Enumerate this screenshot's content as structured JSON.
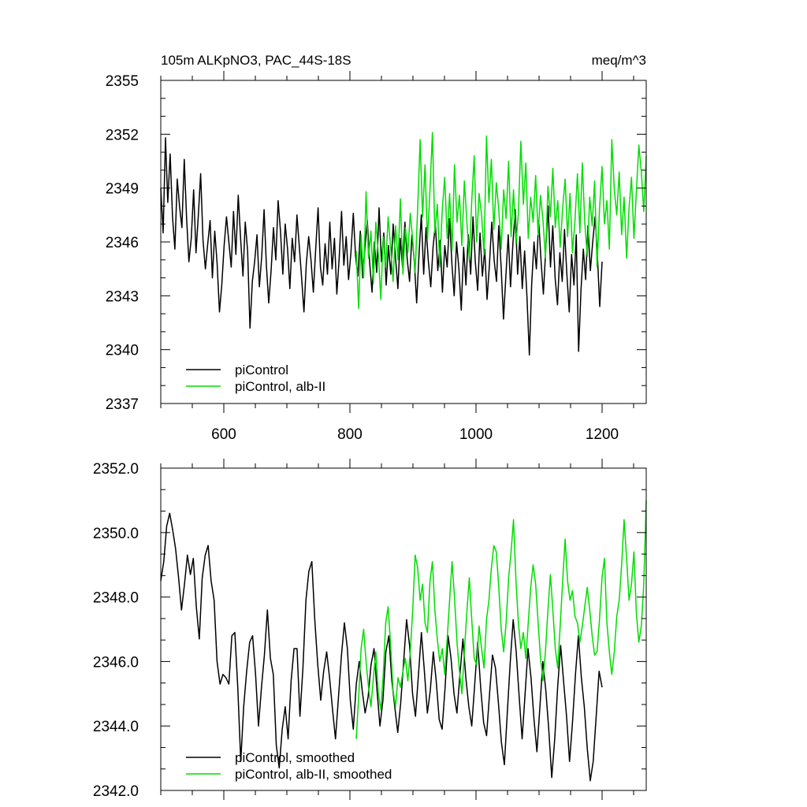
{
  "chart_data": [
    {
      "type": "line",
      "title_left": "105m ALKpNO3, PAC_44S-18S",
      "title_right": "meq/m^3",
      "xlabel": "",
      "ylabel": "",
      "xlim": [
        500,
        1270
      ],
      "ylim": [
        2337,
        2355
      ],
      "xticks": [
        600,
        800,
        1000,
        1200
      ],
      "xtick_labels": [
        "600",
        "800",
        "1000",
        "1200"
      ],
      "yticks": [
        2337,
        2340,
        2343,
        2346,
        2349,
        2352,
        2355
      ],
      "ytick_labels": [
        "2337",
        "2340",
        "2343",
        "2346",
        "2349",
        "2352",
        "2355"
      ],
      "grid": false,
      "legend_position": "bottom-left",
      "series": [
        {
          "name": "piControl",
          "color": "#000000",
          "x_start": 500,
          "x_end": 1200,
          "values": [
            2349.0,
            2346.5,
            2351.8,
            2348.2,
            2350.9,
            2347.4,
            2345.6,
            2349.5,
            2348.0,
            2346.8,
            2350.6,
            2347.3,
            2344.9,
            2346.2,
            2348.9,
            2345.4,
            2347.5,
            2349.8,
            2346.1,
            2344.5,
            2345.9,
            2347.2,
            2344.0,
            2346.6,
            2344.8,
            2342.1,
            2343.6,
            2345.8,
            2347.4,
            2346.0,
            2344.6,
            2347.7,
            2345.3,
            2348.6,
            2346.2,
            2344.1,
            2347.1,
            2345.5,
            2341.2,
            2343.8,
            2344.9,
            2346.4,
            2343.5,
            2345.2,
            2347.8,
            2344.7,
            2342.6,
            2344.4,
            2346.8,
            2345.0,
            2348.3,
            2346.6,
            2344.2,
            2347.0,
            2345.6,
            2343.4,
            2346.2,
            2344.9,
            2347.5,
            2345.8,
            2344.0,
            2342.1,
            2344.8,
            2346.3,
            2345.0,
            2343.2,
            2345.6,
            2347.9,
            2344.6,
            2343.6,
            2345.9,
            2344.2,
            2347.1,
            2344.5,
            2346.2,
            2343.1,
            2345.1,
            2347.7,
            2344.7,
            2346.3,
            2343.9,
            2345.4,
            2347.6,
            2345.2,
            2344.1,
            2346.6,
            2344.0,
            2345.7,
            2347.2,
            2344.8,
            2343.2,
            2346.0,
            2344.3,
            2347.9,
            2344.9,
            2346.5,
            2343.6,
            2345.8,
            2344.2,
            2347.0,
            2345.1,
            2343.4,
            2346.2,
            2344.6,
            2347.1,
            2345.0,
            2343.8,
            2346.4,
            2344.9,
            2342.6,
            2345.3,
            2347.5,
            2344.2,
            2346.8,
            2344.9,
            2343.5,
            2345.7,
            2347.0,
            2344.4,
            2346.1,
            2343.2,
            2345.8,
            2344.6,
            2347.3,
            2344.8,
            2343.0,
            2346.0,
            2344.5,
            2342.2,
            2345.7,
            2343.6,
            2346.4,
            2344.2,
            2347.4,
            2344.9,
            2343.3,
            2346.5,
            2344.1,
            2345.6,
            2342.8,
            2344.7,
            2347.1,
            2345.0,
            2343.8,
            2346.9,
            2344.6,
            2341.7,
            2344.1,
            2346.4,
            2343.5,
            2345.9,
            2347.8,
            2344.2,
            2346.3,
            2343.4,
            2345.5,
            2342.9,
            2339.7,
            2343.6,
            2346.0,
            2344.5,
            2347.2,
            2344.9,
            2343.1,
            2345.6,
            2348.0,
            2344.6,
            2346.9,
            2344.0,
            2342.5,
            2345.4,
            2343.8,
            2346.7,
            2344.2,
            2342.1,
            2345.3,
            2343.6,
            2346.4,
            2339.9,
            2343.3,
            2345.6,
            2343.9,
            2346.9,
            2344.4,
            2346.0,
            2347.4,
            2345.3,
            2342.4,
            2344.9
          ]
        },
        {
          "name": "piControl, alb-II",
          "color": "#00dd00",
          "x_start": 810,
          "x_end": 1270,
          "values": [
            2345.5,
            2342.3,
            2346.4,
            2344.0,
            2348.8,
            2345.1,
            2346.6,
            2343.7,
            2347.1,
            2345.3,
            2342.8,
            2346.3,
            2344.6,
            2347.4,
            2345.7,
            2343.8,
            2346.9,
            2345.0,
            2348.4,
            2344.2,
            2346.8,
            2345.4,
            2347.6,
            2346.1,
            2344.3,
            2347.9,
            2351.7,
            2347.4,
            2350.3,
            2346.1,
            2348.9,
            2352.1,
            2346.5,
            2348.1,
            2344.6,
            2347.8,
            2349.6,
            2346.2,
            2348.7,
            2345.5,
            2350.3,
            2347.1,
            2348.6,
            2345.8,
            2349.4,
            2347.2,
            2345.0,
            2348.3,
            2350.8,
            2346.0,
            2348.7,
            2347.5,
            2345.3,
            2351.9,
            2348.2,
            2350.6,
            2346.7,
            2349.3,
            2347.8,
            2345.6,
            2348.9,
            2347.3,
            2350.5,
            2346.3,
            2348.9,
            2345.9,
            2347.6,
            2351.6,
            2348.1,
            2350.4,
            2346.2,
            2348.5,
            2347.1,
            2349.7,
            2346.4,
            2348.6,
            2347.2,
            2345.1,
            2349.1,
            2347.4,
            2350.1,
            2346.8,
            2348.3,
            2345.7,
            2347.9,
            2349.5,
            2346.3,
            2348.7,
            2345.4,
            2347.2,
            2349.8,
            2346.5,
            2350.4,
            2347.1,
            2345.2,
            2348.5,
            2346.9,
            2349.4,
            2344.6,
            2347.8,
            2350.2,
            2347.0,
            2348.3,
            2345.6,
            2351.7,
            2348.9,
            2347.5,
            2349.9,
            2346.4,
            2348.5,
            2345.1,
            2347.9,
            2349.6,
            2346.2,
            2348.8,
            2351.4,
            2349.9,
            2347.7,
            2350.8
          ]
        }
      ]
    },
    {
      "type": "line",
      "title_left": "",
      "title_right": "",
      "xlabel": "",
      "ylabel": "",
      "xlim": [
        500,
        1270
      ],
      "ylim": [
        2342.0,
        2352.0
      ],
      "xticks": [
        600,
        800,
        1000,
        1200
      ],
      "xtick_labels": [
        "",
        "",
        "",
        ""
      ],
      "yticks": [
        2342.0,
        2344.0,
        2346.0,
        2348.0,
        2350.0,
        2352.0
      ],
      "ytick_labels": [
        "2342.0",
        "2344.0",
        "2346.0",
        "2348.0",
        "2350.0",
        "2352.0"
      ],
      "grid": false,
      "legend_position": "bottom-left",
      "series": [
        {
          "name": "piControl, smoothed",
          "color": "#000000",
          "x_start": 500,
          "x_end": 1200,
          "values": [
            2348.5,
            2349.1,
            2350.2,
            2350.6,
            2350.1,
            2349.5,
            2348.6,
            2347.6,
            2348.4,
            2349.3,
            2348.7,
            2349.2,
            2347.7,
            2346.7,
            2348.6,
            2349.3,
            2349.6,
            2348.5,
            2347.9,
            2346.0,
            2345.3,
            2345.6,
            2345.5,
            2345.3,
            2346.8,
            2346.9,
            2345.2,
            2342.9,
            2344.6,
            2345.7,
            2346.6,
            2346.8,
            2345.6,
            2344.0,
            2345.2,
            2346.2,
            2347.6,
            2346.1,
            2345.6,
            2343.4,
            2342.7,
            2343.9,
            2344.6,
            2343.6,
            2345.4,
            2346.4,
            2346.4,
            2344.3,
            2345.8,
            2347.9,
            2348.8,
            2349.1,
            2347.3,
            2345.9,
            2344.8,
            2345.7,
            2346.3,
            2345.5,
            2344.5,
            2343.6,
            2344.9,
            2346.2,
            2347.2,
            2346.4,
            2344.8,
            2343.9,
            2345.3,
            2346.0,
            2345.1,
            2344.4,
            2344.9,
            2345.9,
            2346.4,
            2345.1,
            2344.0,
            2344.8,
            2346.3,
            2346.8,
            2345.4,
            2344.6,
            2343.8,
            2344.7,
            2346.0,
            2347.3,
            2346.5,
            2345.0,
            2344.3,
            2345.6,
            2346.9,
            2345.7,
            2344.4,
            2345.1,
            2346.3,
            2345.4,
            2344.2,
            2343.9,
            2345.2,
            2346.8,
            2346.1,
            2345.0,
            2344.4,
            2345.6,
            2346.7,
            2345.5,
            2344.6,
            2344.0,
            2345.3,
            2346.6,
            2345.2,
            2344.1,
            2343.7,
            2345.0,
            2346.2,
            2345.8,
            2344.7,
            2343.5,
            2342.8,
            2344.4,
            2346.0,
            2347.3,
            2346.3,
            2344.9,
            2343.6,
            2345.0,
            2346.4,
            2345.5,
            2344.2,
            2343.2,
            2344.6,
            2346.0,
            2345.1,
            2343.9,
            2342.4,
            2343.6,
            2345.2,
            2346.5,
            2345.4,
            2344.3,
            2342.9,
            2344.1,
            2345.6,
            2346.8,
            2345.5,
            2344.6,
            2343.3,
            2342.3,
            2342.9,
            2344.3,
            2345.7,
            2345.2
          ]
        },
        {
          "name": "piControl, alb-II, smoothed",
          "color": "#00dd00",
          "x_start": 810,
          "x_end": 1270,
          "values": [
            2343.6,
            2344.9,
            2346.4,
            2347.0,
            2346.0,
            2345.2,
            2344.6,
            2345.5,
            2346.3,
            2345.0,
            2344.5,
            2345.6,
            2347.2,
            2347.7,
            2346.5,
            2345.1,
            2344.6,
            2345.5,
            2345.2,
            2345.7,
            2346.1,
            2345.4,
            2346.3,
            2347.6,
            2349.3,
            2348.9,
            2347.9,
            2348.4,
            2347.2,
            2346.9,
            2348.5,
            2349.1,
            2347.6,
            2346.7,
            2346.0,
            2346.4,
            2345.6,
            2346.7,
            2347.9,
            2349.1,
            2348.0,
            2346.6,
            2345.7,
            2345.0,
            2346.3,
            2347.5,
            2348.6,
            2347.3,
            2346.1,
            2345.9,
            2347.1,
            2346.4,
            2345.8,
            2347.3,
            2347.9,
            2348.9,
            2349.6,
            2349.4,
            2348.3,
            2347.0,
            2346.3,
            2347.2,
            2348.6,
            2349.4,
            2350.4,
            2348.5,
            2347.2,
            2346.4,
            2346.9,
            2346.1,
            2347.2,
            2348.3,
            2349.0,
            2348.4,
            2347.2,
            2346.1,
            2345.4,
            2346.3,
            2347.6,
            2348.7,
            2347.6,
            2346.4,
            2345.8,
            2347.1,
            2348.5,
            2349.8,
            2348.5,
            2347.9,
            2348.2,
            2347.4,
            2347.2,
            2346.6,
            2347.1,
            2347.7,
            2348.3,
            2347.6,
            2346.8,
            2346.2,
            2346.3,
            2347.3,
            2348.6,
            2349.2,
            2347.2,
            2346.3,
            2345.6,
            2346.3,
            2347.4,
            2347.9,
            2349.0,
            2350.4,
            2349.2,
            2347.9,
            2348.4,
            2349.4,
            2347.5,
            2346.6,
            2347.1,
            2348.4,
            2351.0
          ]
        }
      ]
    }
  ]
}
